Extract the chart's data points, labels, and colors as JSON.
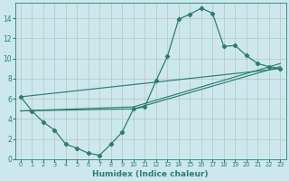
{
  "xlabel": "Humidex (Indice chaleur)",
  "line_color": "#2e7d6e",
  "bg_color": "#cce8ec",
  "grid_color": "#b8b8b8",
  "xlim": [
    -0.5,
    23.5
  ],
  "ylim": [
    0,
    15.5
  ],
  "xticks": [
    0,
    1,
    2,
    3,
    4,
    5,
    6,
    7,
    8,
    9,
    10,
    11,
    12,
    13,
    14,
    15,
    16,
    17,
    18,
    19,
    20,
    21,
    22,
    23
  ],
  "yticks": [
    0,
    2,
    4,
    6,
    8,
    10,
    12,
    14
  ],
  "series1_x": [
    0,
    1,
    2,
    3,
    4,
    5,
    6,
    7,
    8,
    9,
    10,
    11,
    12,
    13,
    14,
    15,
    16,
    17,
    18,
    19,
    20,
    21,
    22,
    23
  ],
  "series1_y": [
    6.2,
    4.8,
    3.7,
    2.9,
    1.5,
    1.1,
    0.6,
    0.4,
    1.5,
    2.7,
    5.0,
    5.2,
    7.8,
    10.2,
    13.9,
    14.4,
    15.0,
    14.5,
    11.2,
    11.3,
    10.3,
    9.5,
    9.2,
    9.0
  ],
  "line2_x": [
    0,
    23
  ],
  "line2_y": [
    6.2,
    9.0
  ],
  "line3_x": [
    0,
    10,
    23
  ],
  "line3_y": [
    4.8,
    5.0,
    9.2
  ],
  "line4_x": [
    0,
    10,
    23
  ],
  "line4_y": [
    4.8,
    5.2,
    9.5
  ]
}
